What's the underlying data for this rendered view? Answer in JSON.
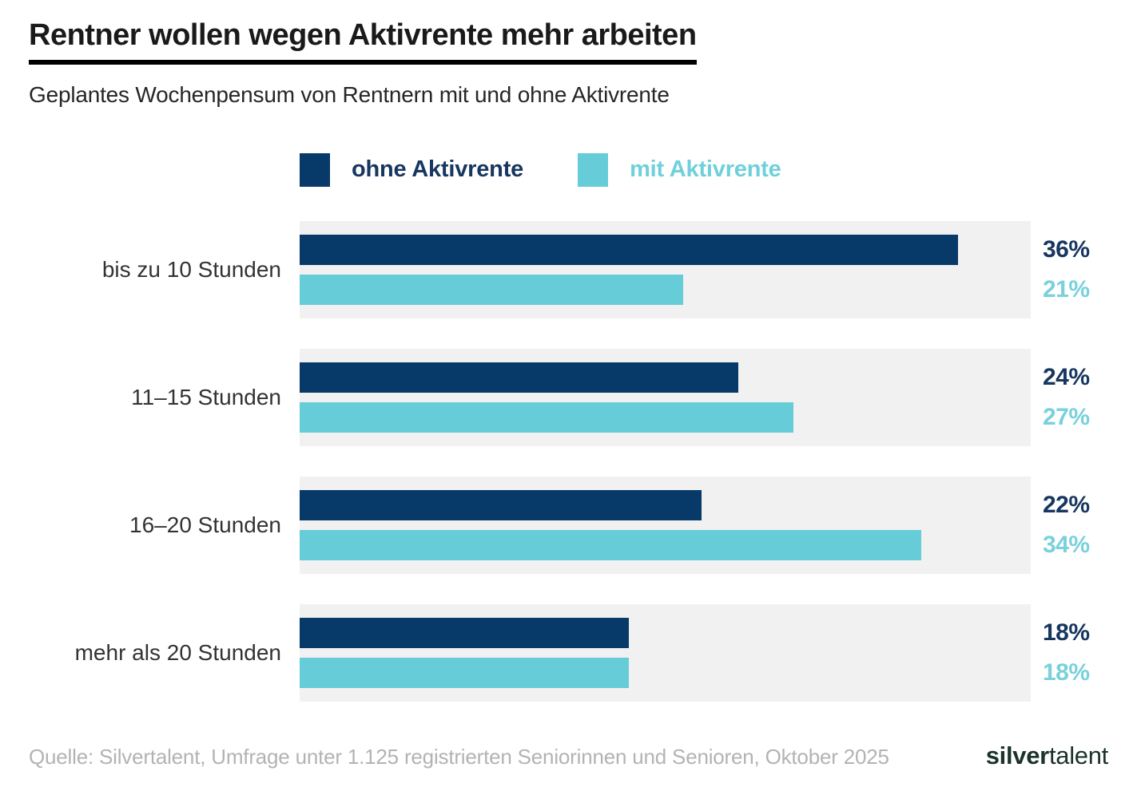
{
  "header": {
    "title": "Rentner wollen wegen Aktivrente mehr arbeiten",
    "subtitle": "Geplantes Wochenpensum von Rentnern mit und ohne Aktivrente"
  },
  "legend": {
    "items": [
      {
        "label": "ohne Aktivrente",
        "color": "#083a69"
      },
      {
        "label": "mit Aktivrente",
        "color": "#66ccd8"
      }
    ]
  },
  "chart_data": {
    "type": "bar",
    "orientation": "horizontal",
    "title": "Rentner wollen wegen Aktivrente mehr arbeiten",
    "subtitle": "Geplantes Wochenpensum von Rentnern mit und ohne Aktivrente",
    "categories": [
      "bis zu 10 Stunden",
      "11–15 Stunden",
      "16–20 Stunden",
      "mehr als 20 Stunden"
    ],
    "series": [
      {
        "name": "ohne Aktivrente",
        "color": "#083a69",
        "values": [
          36,
          24,
          22,
          18
        ]
      },
      {
        "name": "mit Aktivrente",
        "color": "#66ccd8",
        "values": [
          21,
          27,
          34,
          18
        ]
      }
    ],
    "value_suffix": "%",
    "xlim": [
      0,
      40
    ],
    "grid": false,
    "legend_position": "top",
    "track_color": "#f1f1f2"
  },
  "footer": {
    "source": "Quelle: Silvertalent, Umfrage unter 1.125 registrierten Seniorinnen und Senioren, Oktober 2025",
    "logo_bold": "silver",
    "logo_thin": "talent"
  }
}
